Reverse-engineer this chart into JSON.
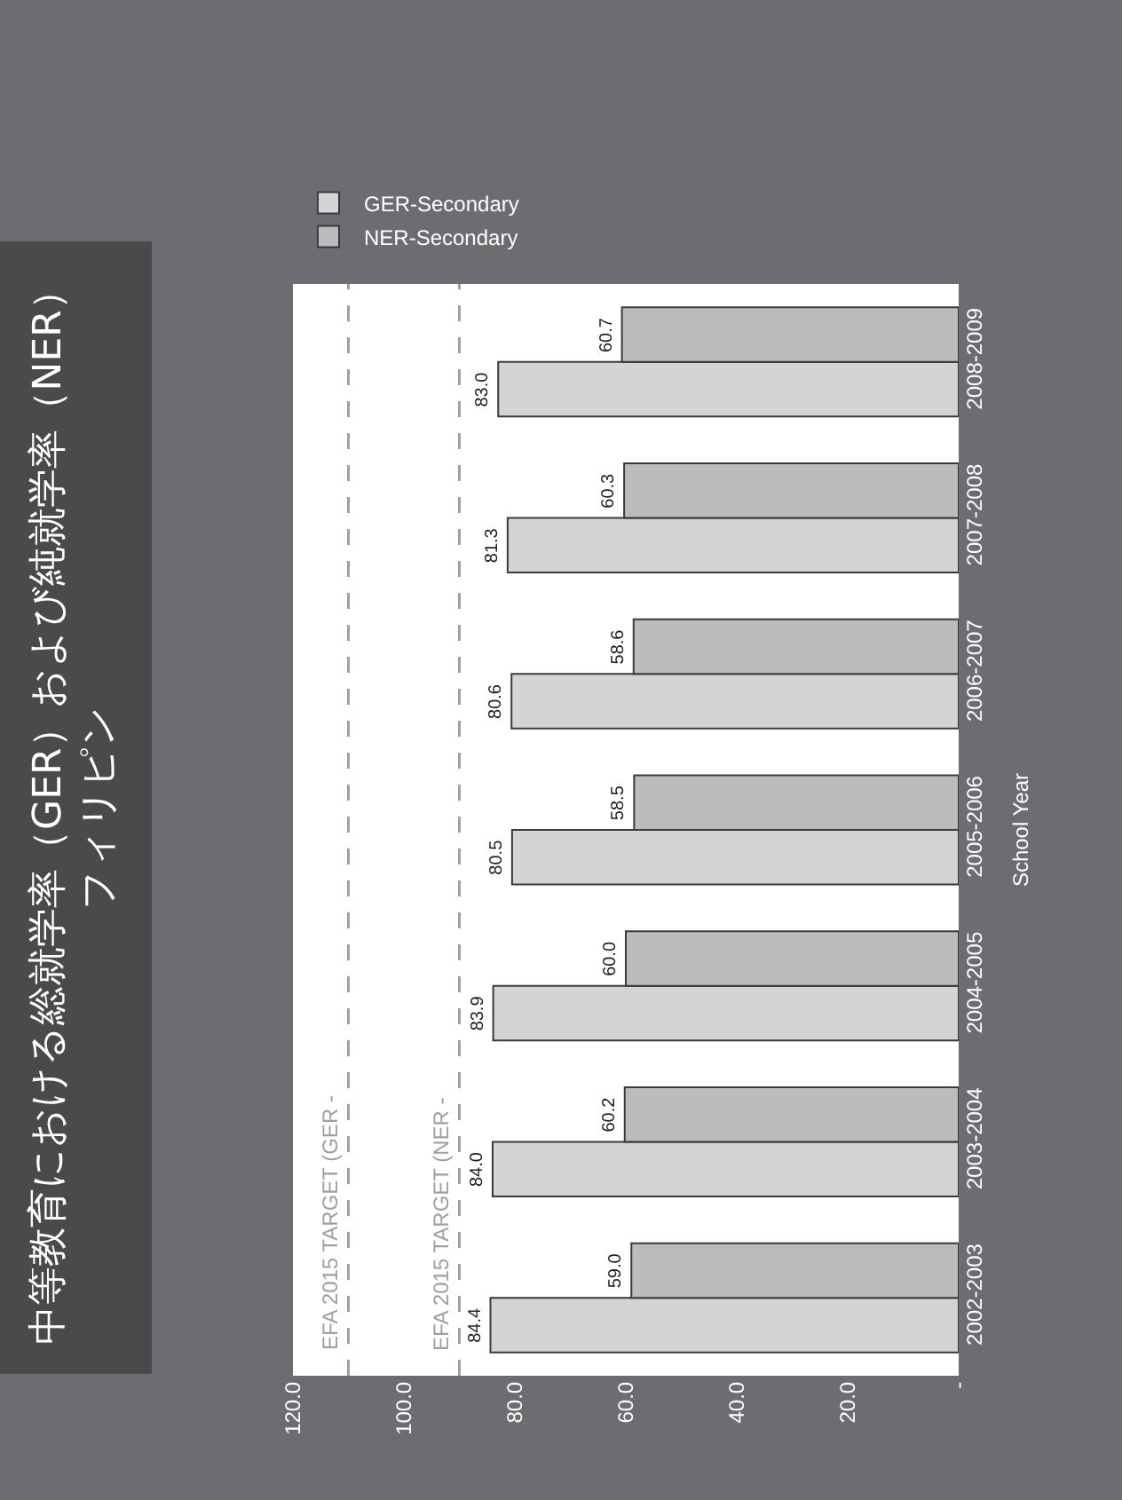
{
  "chart_data": {
    "type": "bar",
    "orientation": "horizontal",
    "title": "中等教育における総就学率（GER）および純就学率（NER）",
    "subtitle": "フィリピン",
    "ylabel": "School Year",
    "categories": [
      "2008-2009",
      "2007-2008",
      "2006-2007",
      "2005-2006",
      "2004-2005",
      "2003-2004",
      "2002-2003"
    ],
    "series": [
      {
        "name": "GER-Secondary",
        "color": "#d4d4d6",
        "values": [
          83.0,
          81.3,
          80.6,
          80.5,
          83.9,
          84.0,
          84.4
        ],
        "value_labels": [
          "83.0",
          "81.3",
          "80.6",
          "80.5",
          "83.9",
          "84.0",
          "84.4"
        ]
      },
      {
        "name": "NER-Secondary",
        "color": "#bcbcbf",
        "values": [
          60.7,
          60.3,
          58.6,
          58.5,
          60.0,
          60.2,
          59.0
        ],
        "value_labels": [
          "60.7",
          "60.3",
          "58.6",
          "58.5",
          "60.0",
          "60.2",
          "59.0"
        ]
      }
    ],
    "xlim": [
      120,
      0
    ],
    "xticks": [
      {
        "value": 120,
        "label": "120.0"
      },
      {
        "value": 100,
        "label": "100.0"
      },
      {
        "value": 80,
        "label": "80.0"
      },
      {
        "value": 60,
        "label": "60.0"
      },
      {
        "value": 40,
        "label": "40.0"
      },
      {
        "value": 20,
        "label": "20.0"
      },
      {
        "value": 0,
        "label": "-"
      }
    ],
    "ref_lines": [
      {
        "axis": "x",
        "value": 110,
        "label": "EFA 2015 TARGET (GER -",
        "color": "#a0a0a0",
        "line_style": "dashed"
      },
      {
        "axis": "x",
        "value": 90,
        "label": "EFA 2015 TARGET (NER -",
        "color": "#a0a0a0",
        "line_style": "dashed"
      }
    ],
    "legend": "top left"
  }
}
